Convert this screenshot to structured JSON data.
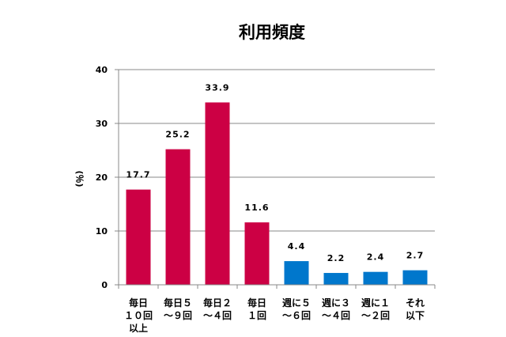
{
  "chart_data": {
    "type": "bar",
    "title": "利用頻度",
    "ylabel": "(％)",
    "xlabel": "",
    "ylim": [
      0,
      40
    ],
    "yticks": [
      "0",
      "10",
      "20",
      "30",
      "40"
    ],
    "grid": true,
    "categories": [
      [
        "毎日",
        "１０回",
        "以上"
      ],
      [
        "毎日５",
        "～９回"
      ],
      [
        "毎日２",
        "～４回"
      ],
      [
        "毎日",
        "１回"
      ],
      [
        "週に５",
        "～６回"
      ],
      [
        "週に３",
        "～４回"
      ],
      [
        "週に１",
        "～２回"
      ],
      [
        "それ",
        "以下"
      ]
    ],
    "values": [
      17.7,
      25.2,
      33.9,
      11.6,
      4.4,
      2.2,
      2.4,
      2.7
    ],
    "value_labels": [
      "17.7",
      "25.2",
      "33.9",
      "11.6",
      "4.4",
      "2.2",
      "2.4",
      "2.7"
    ],
    "bar_colors": [
      "#cc0044",
      "#cc0044",
      "#cc0044",
      "#cc0044",
      "#0077cc",
      "#0077cc",
      "#0077cc",
      "#0077cc"
    ]
  }
}
